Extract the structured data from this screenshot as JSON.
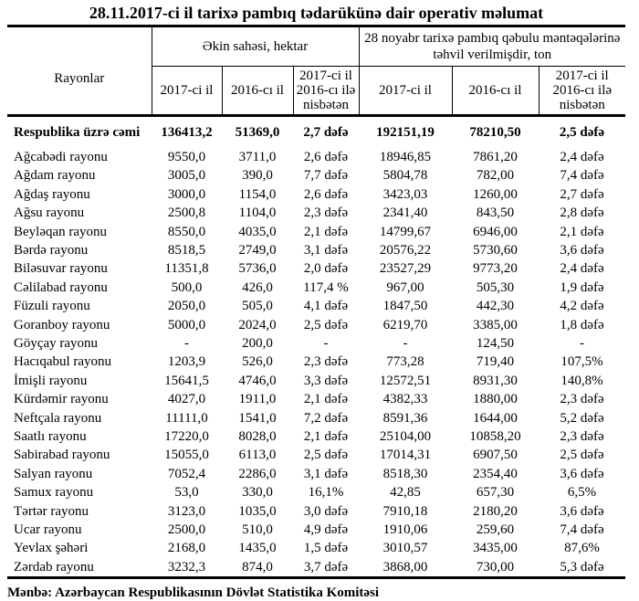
{
  "title": "28.11.2017-ci il tarixə pambıq tədarükünə dair operativ məlumat",
  "source": "Mənbə: Azərbaycan Respublikasının Dövlət Statistika Komitəsi",
  "table": {
    "rayonlar_header": "Rayonlar",
    "group_headers": [
      "Əkin sahəsi, hektar",
      "28 noyabr tarixə pambıq qəbulu məntəqələrinə\ntəhvil verilmişdir, ton"
    ],
    "sub_headers": [
      "2017-ci il",
      "2016-cı il",
      "2017-ci il\n2016-cı ilə\nnisbətən",
      "2017-ci il",
      "2016-cı il",
      "2017-ci il\n2016-cı ilə\nnisbətən"
    ],
    "total_row": {
      "label": "Respublika üzrə cəmi",
      "values": [
        "136413,2",
        "51369,0",
        "2,7 dəfə",
        "192151,19",
        "78210,50",
        "2,5 dəfə"
      ]
    },
    "rows": [
      {
        "label": "Ağcabədi rayonu",
        "values": [
          "9550,0",
          "3711,0",
          "2,6 dəfə",
          "18946,85",
          "7861,20",
          "2,4 dəfə"
        ]
      },
      {
        "label": "Ağdam rayonu",
        "values": [
          "3005,0",
          "390,0",
          "7,7 dəfə",
          "5804,78",
          "782,00",
          "7,4 dəfə"
        ]
      },
      {
        "label": "Ağdaş rayonu",
        "values": [
          "3000,0",
          "1154,0",
          "2,6 dəfə",
          "3423,03",
          "1260,00",
          "2,7 dəfə"
        ]
      },
      {
        "label": "Ağsu rayonu",
        "values": [
          "2500,8",
          "1104,0",
          "2,3 dəfə",
          "2341,40",
          "843,50",
          "2,8 dəfə"
        ]
      },
      {
        "label": "Beyləqan rayonu",
        "values": [
          "8550,0",
          "4035,0",
          "2,1 dəfə",
          "14799,67",
          "6946,00",
          "2,1 dəfə"
        ]
      },
      {
        "label": "Bərdə rayonu",
        "values": [
          "8518,5",
          "2749,0",
          "3,1 dəfə",
          "20576,22",
          "5730,60",
          "3,6 dəfə"
        ]
      },
      {
        "label": "Biləsuvar rayonu",
        "values": [
          "11351,8",
          "5736,0",
          "2,0 dəfə",
          "23527,29",
          "9773,20",
          "2,4 dəfə"
        ]
      },
      {
        "label": "Cəlilabad rayonu",
        "values": [
          "500,0",
          "426,0",
          "117,4 %",
          "967,00",
          "505,30",
          "1,9 dəfə"
        ]
      },
      {
        "label": "Füzuli rayonu",
        "values": [
          "2050,0",
          "505,0",
          "4,1 dəfə",
          "1847,50",
          "442,30",
          "4,2 dəfə"
        ]
      },
      {
        "label": "Goranboy rayonu",
        "values": [
          "5000,0",
          "2024,0",
          "2,5 dəfə",
          "6219,70",
          "3385,00",
          "1,8 dəfə"
        ]
      },
      {
        "label": "Göyçay rayonu",
        "values": [
          "-",
          "200,0",
          "-",
          "-",
          "124,50",
          "-"
        ]
      },
      {
        "label": "Hacıqabul rayonu",
        "values": [
          "1203,9",
          "526,0",
          "2,3 dəfə",
          "773,28",
          "719,40",
          "107,5%"
        ]
      },
      {
        "label": "İmişli rayonu",
        "values": [
          "15641,5",
          "4746,0",
          "3,3 dəfə",
          "12572,51",
          "8931,30",
          "140,8%"
        ]
      },
      {
        "label": "Kürdəmir rayonu",
        "values": [
          "4027,0",
          "1911,0",
          "2,1 dəfə",
          "4382,33",
          "1880,00",
          "2,3 dəfə"
        ]
      },
      {
        "label": "Neftçala rayonu",
        "values": [
          "11111,0",
          "1541,0",
          "7,2 dəfə",
          "8591,36",
          "1644,00",
          "5,2 dəfə"
        ]
      },
      {
        "label": "Saatlı rayonu",
        "values": [
          "17220,0",
          "8028,0",
          "2,1 dəfə",
          "25104,00",
          "10858,20",
          "2,3 dəfə"
        ]
      },
      {
        "label": "Sabirabad rayonu",
        "values": [
          "15055,0",
          "6113,0",
          "2,5 dəfə",
          "17014,31",
          "6907,50",
          "2,5 dəfə"
        ]
      },
      {
        "label": "Salyan rayonu",
        "values": [
          "7052,4",
          "2286,0",
          "3,1 dəfə",
          "8518,30",
          "2354,40",
          "3,6 dəfə"
        ]
      },
      {
        "label": "Samux rayonu",
        "values": [
          "53,0",
          "330,0",
          "16,1%",
          "42,85",
          "657,30",
          "6,5%"
        ]
      },
      {
        "label": "Tərtər rayonu",
        "values": [
          "3123,0",
          "1035,0",
          "3,0 dəfə",
          "7910,18",
          "2180,20",
          "3,6 dəfə"
        ]
      },
      {
        "label": "Ucar rayonu",
        "values": [
          "2500,0",
          "510,0",
          "4,9 dəfə",
          "1910,06",
          "259,60",
          "7,4 dəfə"
        ]
      },
      {
        "label": "Yevlax şəhəri",
        "values": [
          "2168,0",
          "1435,0",
          "1,5 dəfə",
          "3010,57",
          "3435,00",
          "87,6%"
        ]
      },
      {
        "label": "Zərdab rayonu",
        "values": [
          "3232,3",
          "874,0",
          "3,7 dəfə",
          "3868,00",
          "730,00",
          "5,3 dəfə"
        ]
      }
    ]
  }
}
